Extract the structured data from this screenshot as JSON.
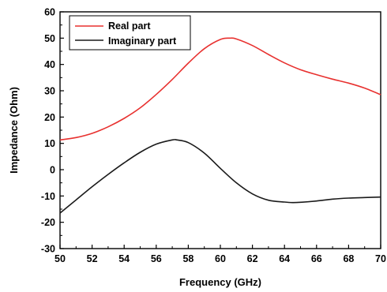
{
  "chart_data": {
    "type": "line",
    "xlabel": "Frequency (GHz)",
    "ylabel": "Impedance (Ohm)",
    "xlim": [
      50,
      70
    ],
    "ylim": [
      -30,
      60
    ],
    "xticks": [
      50,
      52,
      54,
      56,
      58,
      60,
      62,
      64,
      66,
      68,
      70
    ],
    "yticks": [
      -30,
      -20,
      -10,
      0,
      10,
      20,
      30,
      40,
      50,
      60
    ],
    "legend_position": "top-left",
    "grid": false,
    "series": [
      {
        "name": "Real part",
        "color": "#e8312f",
        "x": [
          50,
          51,
          52,
          53,
          54,
          55,
          56,
          57,
          58,
          59,
          60,
          60.6,
          61,
          62,
          63,
          64,
          65,
          66,
          67,
          68,
          69,
          70
        ],
        "y": [
          11.3,
          12.2,
          13.8,
          16.3,
          19.5,
          23.5,
          28.6,
          34.3,
          40.5,
          46.0,
          49.5,
          50.0,
          49.7,
          47.2,
          43.8,
          40.6,
          38.0,
          36.1,
          34.4,
          32.9,
          31.0,
          28.5
        ]
      },
      {
        "name": "Imaginary part",
        "color": "#1a1a1a",
        "x": [
          50,
          51,
          52,
          53,
          54,
          55,
          56,
          57,
          57.3,
          58,
          59,
          60,
          61,
          62,
          63,
          64,
          64.5,
          65,
          66,
          67,
          68,
          69,
          70
        ],
        "y": [
          -16.5,
          -11.5,
          -6.5,
          -1.8,
          2.6,
          6.6,
          9.7,
          11.3,
          11.3,
          10.3,
          6.3,
          0.5,
          -5.0,
          -9.2,
          -11.6,
          -12.3,
          -12.5,
          -12.4,
          -11.9,
          -11.2,
          -10.8,
          -10.6,
          -10.4
        ]
      }
    ]
  }
}
